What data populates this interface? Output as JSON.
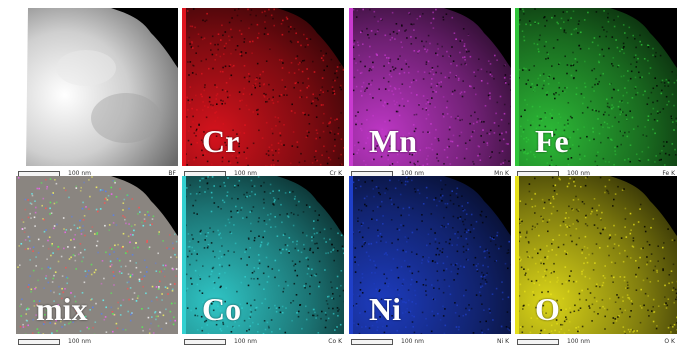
{
  "panels": [
    {
      "id": "bf",
      "element": "",
      "scale_label": "100 nm",
      "channel": "BF",
      "color": "#ffffff",
      "strip": ""
    },
    {
      "id": "cr",
      "element": "Cr",
      "scale_label": "100 nm",
      "channel": "Cr K",
      "color": "#e0141e",
      "strip": "#e0141e"
    },
    {
      "id": "mn",
      "element": "Mn",
      "scale_label": "100 nm",
      "channel": "Mn K",
      "color": "#c83ad0",
      "strip": "#c83ad0"
    },
    {
      "id": "fe",
      "element": "Fe",
      "scale_label": "100 nm",
      "channel": "Fe K",
      "color": "#2fc43a",
      "strip": "#2fc43a"
    },
    {
      "id": "mix",
      "element": "mix",
      "scale_label": "100 nm",
      "channel": "",
      "color": "#b0a8a0",
      "strip": ""
    },
    {
      "id": "co",
      "element": "Co",
      "scale_label": "100 nm",
      "channel": "Co K",
      "color": "#32d0d0",
      "strip": "#32d0d0"
    },
    {
      "id": "ni",
      "element": "Ni",
      "scale_label": "100 nm",
      "channel": "Ni K",
      "color": "#1f3fc8",
      "strip": "#1f3fc8"
    },
    {
      "id": "o",
      "element": "O",
      "scale_label": "100 nm",
      "channel": "O K",
      "color": "#e6e01a",
      "strip": "#e6e01a"
    }
  ]
}
